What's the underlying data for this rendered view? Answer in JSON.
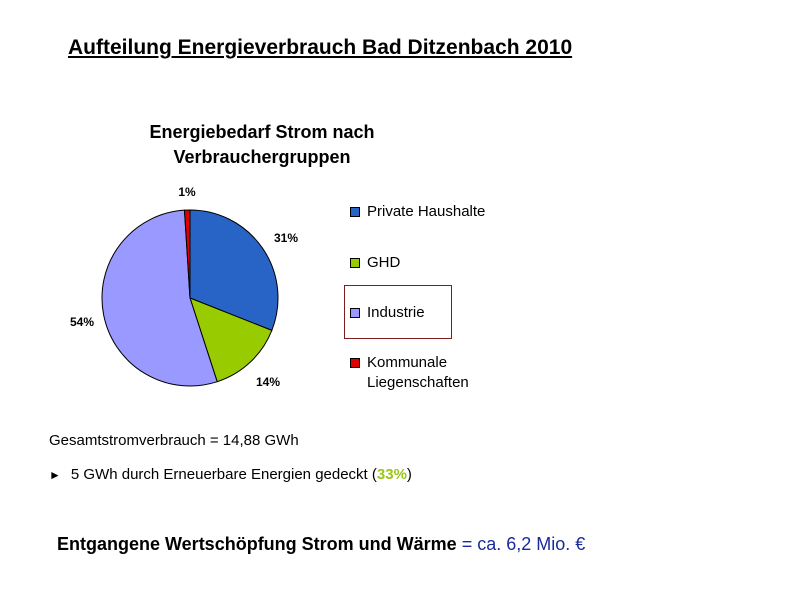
{
  "slide": {
    "title": "Aufteilung Energieverbrauch Bad Ditzenbach 2010"
  },
  "chart_data": {
    "type": "pie",
    "title_line1": "Energiebedarf Strom nach",
    "title_line2": "Verbrauchergruppen",
    "categories": [
      "Private Haushalte",
      "GHD",
      "Industrie",
      "Kommunale Liegenschaften"
    ],
    "legend_lines": [
      [
        "Private Haushalte"
      ],
      [
        "GHD"
      ],
      [
        "Industrie"
      ],
      [
        "Kommunale",
        "Liegenschaften"
      ]
    ],
    "values": [
      31,
      14,
      54,
      1
    ],
    "labels": [
      "31%",
      "14%",
      "54%",
      "1%"
    ],
    "colors": [
      "#2764c6",
      "#99cc00",
      "#9999ff",
      "#dd0000"
    ],
    "legend_placement": "right",
    "highlighted_category": "Industrie"
  },
  "summary": {
    "total": "Gesamtstromverbrauch = 14,88 GWh",
    "renewable_arrow": "►",
    "renewable_text": "5 GWh durch Erneuerbare Energien gedeckt (",
    "renewable_pct": "33%",
    "renewable_close": ")",
    "value_label": "Entgangene Wertschöpfung Strom und Wärme",
    "value_eq": " = ",
    "value_amount": "ca. 6,2 Mio. €"
  }
}
